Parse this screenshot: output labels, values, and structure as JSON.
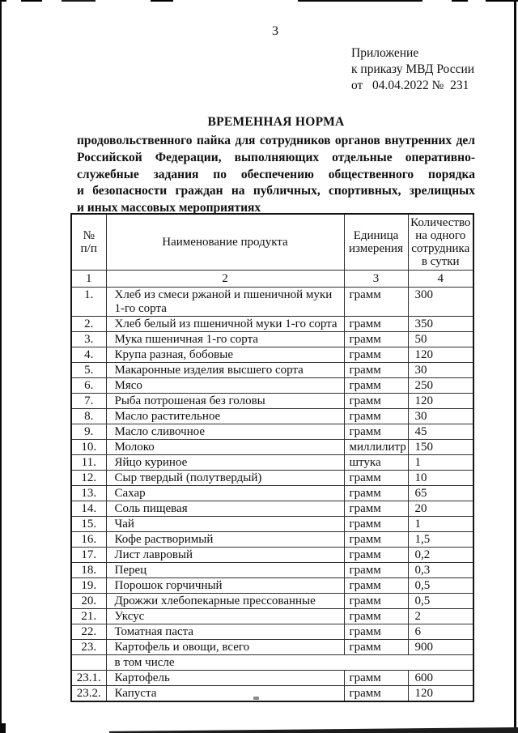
{
  "page": {
    "number": "3",
    "approval_block": {
      "line1": "Приложение",
      "line2": "к приказу МВД России",
      "line3": "от   04.04.2022 №  231"
    },
    "title": "ВРЕМЕННАЯ НОРМА",
    "preamble_lines": [
      {
        "text": "продовольственного пайка для сотрудников органов внутренних дел",
        "justify": true
      },
      {
        "text": "Российской Федерации, выполняющих отдельные оперативно-",
        "justify": true
      },
      {
        "text": "служебные задания по обеспечению общественного порядка",
        "justify": true
      },
      {
        "text": "и безопасности граждан на публичных, спортивных, зрелищных",
        "justify": true
      },
      {
        "text": "и иных массовых мероприятиях",
        "justify": false
      }
    ]
  },
  "table": {
    "col_headers": [
      "№\nп/п",
      "Наименование продукта",
      "Единица\nизмерения",
      "Количество\nна одного\nсотрудника\nв сутки"
    ],
    "col_numbers": [
      "1",
      "2",
      "3",
      "4"
    ],
    "rows": [
      {
        "num": "1.",
        "name": "Хлеб из смеси ржаной и пшеничной муки 1-го сорта",
        "unit": "грамм",
        "qty": "300"
      },
      {
        "num": "2.",
        "name": "Хлеб белый из пшеничной муки 1-го сорта",
        "unit": "грамм",
        "qty": "350"
      },
      {
        "num": "3.",
        "name": "Мука пшеничная 1-го сорта",
        "unit": "грамм",
        "qty": "50"
      },
      {
        "num": "4.",
        "name": "Крупа разная, бобовые",
        "unit": "грамм",
        "qty": "120"
      },
      {
        "num": "5.",
        "name": "Макаронные изделия высшего сорта",
        "unit": "грамм",
        "qty": "30"
      },
      {
        "num": "6.",
        "name": "Мясо",
        "unit": "грамм",
        "qty": "250"
      },
      {
        "num": "7.",
        "name": "Рыба потрошеная без головы",
        "unit": "грамм",
        "qty": "120"
      },
      {
        "num": "8.",
        "name": "Масло растительное",
        "unit": "грамм",
        "qty": "30"
      },
      {
        "num": "9.",
        "name": "Масло сливочное",
        "unit": "грамм",
        "qty": "45"
      },
      {
        "num": "10.",
        "name": "Молоко",
        "unit": "миллилитр",
        "qty": "150"
      },
      {
        "num": "11.",
        "name": "Яйцо куриное",
        "unit": "штука",
        "qty": "1"
      },
      {
        "num": "12.",
        "name": "Сыр твердый (полутвердый)",
        "unit": "грамм",
        "qty": "10"
      },
      {
        "num": "13.",
        "name": "Сахар",
        "unit": "грамм",
        "qty": "65"
      },
      {
        "num": "14.",
        "name": "Соль пищевая",
        "unit": "грамм",
        "qty": "20"
      },
      {
        "num": "15.",
        "name": "Чай",
        "unit": "грамм",
        "qty": "1"
      },
      {
        "num": "16.",
        "name": "Кофе растворимый",
        "unit": "грамм",
        "qty": "1,5"
      },
      {
        "num": "17.",
        "name": "Лист лавровый",
        "unit": "грамм",
        "qty": "0,2"
      },
      {
        "num": "18.",
        "name": "Перец",
        "unit": "грамм",
        "qty": "0,3"
      },
      {
        "num": "19.",
        "name": "Порошок горчичный",
        "unit": "грамм",
        "qty": "0,5"
      },
      {
        "num": "20.",
        "name": "Дрожжи хлебопекарные прессованные",
        "unit": "грамм",
        "qty": "0,5"
      },
      {
        "num": "21.",
        "name": "Уксус",
        "unit": "грамм",
        "qty": "2"
      },
      {
        "num": "22.",
        "name": "Томатная паста",
        "unit": "грамм",
        "qty": "6"
      },
      {
        "num": "23.",
        "name": "Картофель и овощи, всего",
        "unit": "грамм",
        "qty": "900"
      },
      {
        "num": "",
        "name": "в том числе",
        "span": true
      },
      {
        "num": "23.1.",
        "name": "Картофель",
        "unit": "грамм",
        "qty": "600"
      },
      {
        "num": "23.2.",
        "name": "Капуста",
        "unit": "грамм",
        "qty": "120"
      }
    ]
  }
}
